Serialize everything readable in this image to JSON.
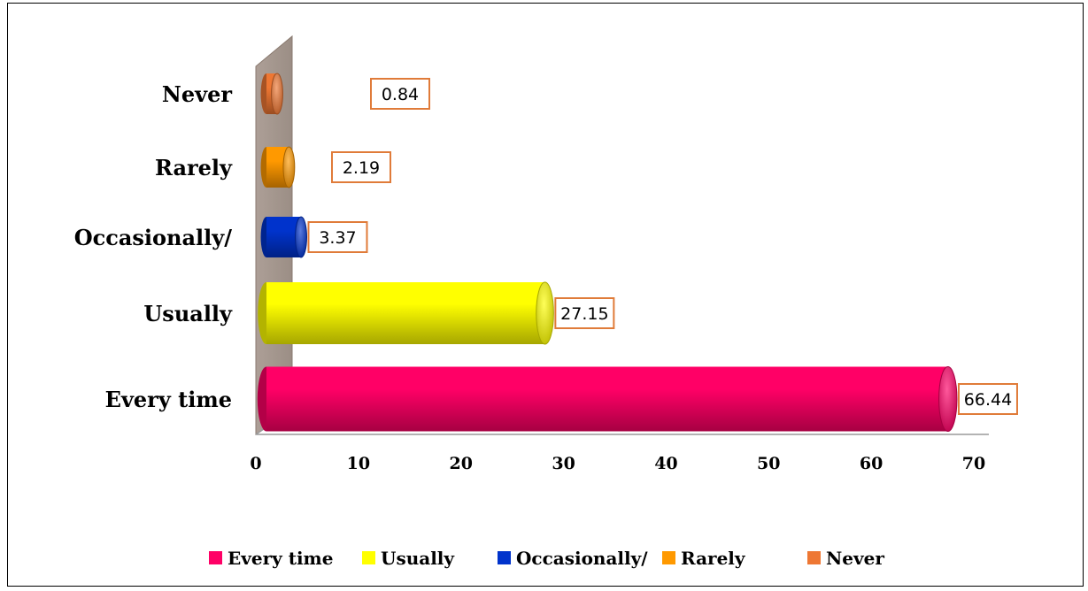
{
  "chart_data": {
    "type": "bar",
    "orientation": "horizontal",
    "style": "3d-cylinder",
    "categories": [
      "Every time",
      "Usually",
      "Occasionally/",
      "Rarely",
      "Never"
    ],
    "values": [
      66.44,
      27.15,
      3.37,
      2.19,
      0.84
    ],
    "data_labels": [
      "66.44",
      "27.15",
      "3.37",
      "2.19",
      "0.84"
    ],
    "colors": [
      "#ff0066",
      "#ffff00",
      "#0033cc",
      "#ff9900",
      "#ee7733"
    ],
    "x_ticks": [
      "0",
      "10",
      "20",
      "30",
      "40",
      "50",
      "60",
      "70"
    ],
    "xlim": [
      0,
      70
    ],
    "title": "",
    "xlabel": "",
    "ylabel": "",
    "grid": false,
    "legend": {
      "position": "bottom",
      "entries": [
        "Every time",
        "Usually",
        "Occasionally/",
        "Rarely",
        "Never"
      ]
    },
    "label_border_color": "#e07b39",
    "back_wall_color": "#a99a91"
  }
}
